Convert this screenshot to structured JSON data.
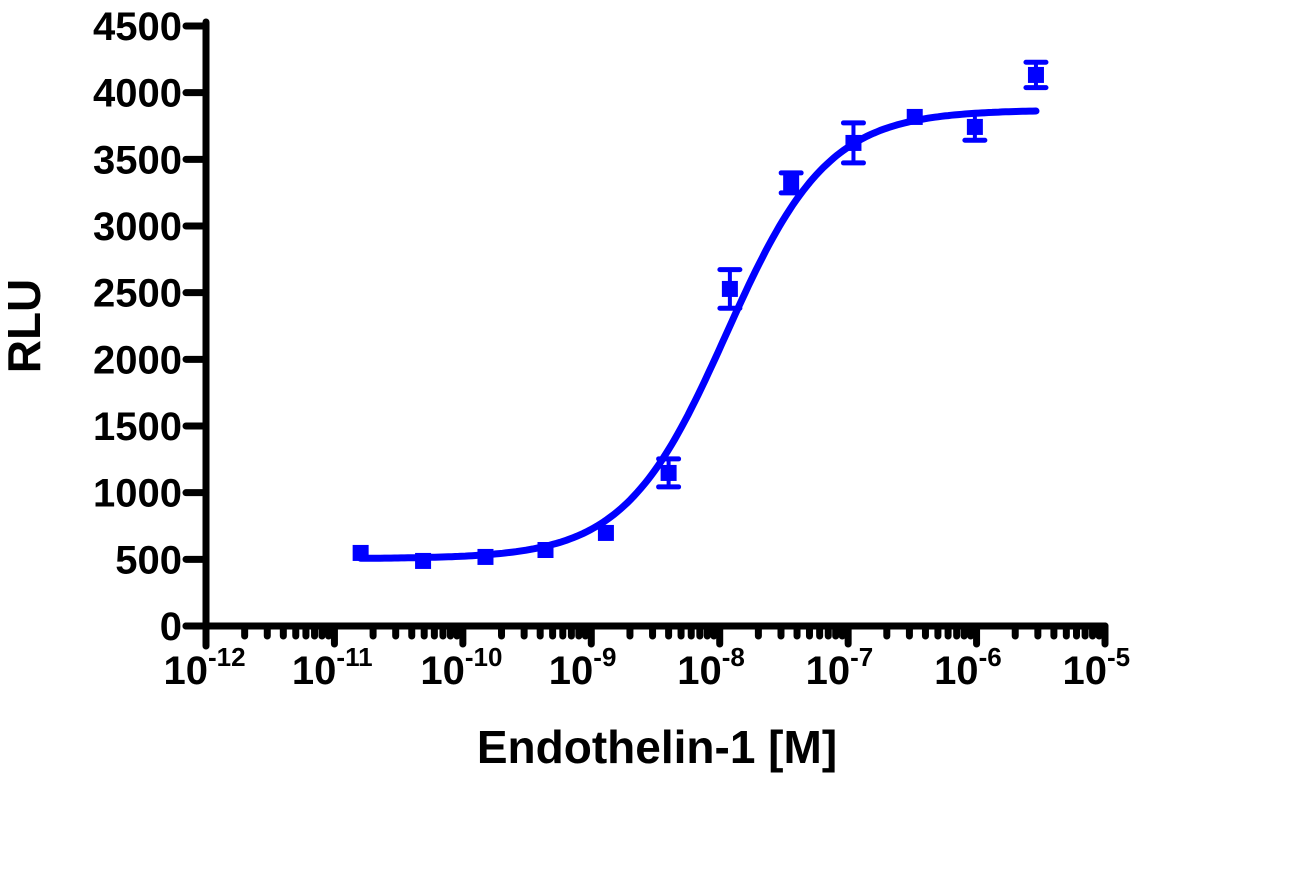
{
  "chart_data": {
    "type": "scatter",
    "title": "",
    "xlabel": "Endothelin-1 [M]",
    "ylabel": "RLU",
    "xscale": "log",
    "xlim": [
      1e-12,
      1e-05
    ],
    "ylim": [
      0,
      4500
    ],
    "grid": false,
    "legend": null,
    "x_ticks": [
      {
        "base": "10",
        "exp": "-12",
        "value": 1e-12
      },
      {
        "base": "10",
        "exp": "-11",
        "value": 1e-11
      },
      {
        "base": "10",
        "exp": "-10",
        "value": 1e-10
      },
      {
        "base": "10",
        "exp": "-9",
        "value": 1e-09
      },
      {
        "base": "10",
        "exp": "-8",
        "value": 1e-08
      },
      {
        "base": "10",
        "exp": "-7",
        "value": 1e-07
      },
      {
        "base": "10",
        "exp": "-6",
        "value": 1e-06
      },
      {
        "base": "10",
        "exp": "-5",
        "value": 1e-05
      }
    ],
    "y_ticks": [
      "0",
      "500",
      "1000",
      "1500",
      "2000",
      "2500",
      "3000",
      "3500",
      "4000",
      "4500"
    ],
    "series": [
      {
        "name": "Endothelin-1",
        "color": "#0000ff",
        "marker": "square",
        "x": [
          1.6e-11,
          4.9e-11,
          1.5e-10,
          4.4e-10,
          1.3e-09,
          4e-09,
          1.2e-08,
          3.6e-08,
          1.1e-07,
          3.3e-07,
          9.7e-07,
          2.9e-06
        ],
        "y": [
          548,
          488,
          518,
          570,
          698,
          1148,
          2528,
          3323,
          3623,
          3818,
          3743,
          4133
        ],
        "yerr": [
          30,
          30,
          30,
          30,
          30,
          105,
          145,
          75,
          150,
          30,
          100,
          95
        ]
      }
    ],
    "fit": {
      "type": "sigmoidal dose-response (4PL)",
      "color": "#0000ff",
      "bottom": 505,
      "top": 3870,
      "log_ec50": -7.95,
      "hill_slope": 1.1,
      "x_range": [
        1.6e-11,
        2.9e-06
      ]
    }
  }
}
